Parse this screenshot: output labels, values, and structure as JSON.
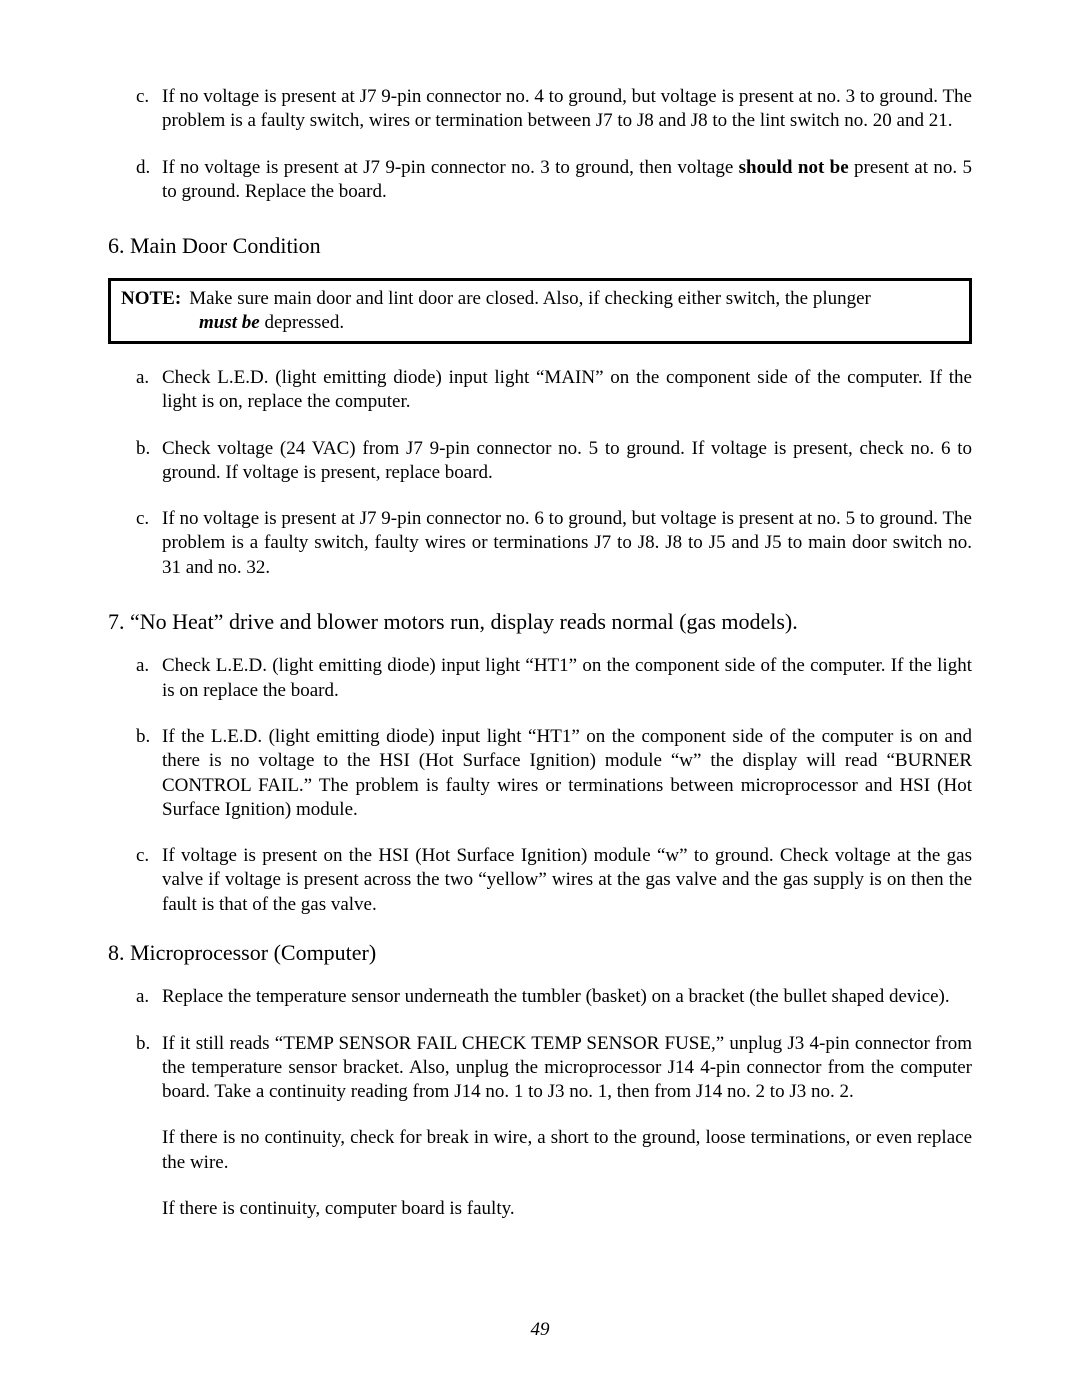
{
  "top_items": {
    "c": {
      "letter": "c.",
      "text": "If no voltage is present at J7 9-pin connector no. 4 to ground, but voltage is present at no. 3 to ground.  The problem is a faulty switch, wires or termination between J7 to J8 and J8 to the lint switch no. 20 and 21."
    },
    "d": {
      "letter": "d.",
      "pre": "If no voltage is present at J7 9-pin connector no. 3 to ground, then voltage ",
      "bold": "should not be",
      "post": " present at no. 5 to ground.  Replace the board."
    }
  },
  "section6": {
    "heading": "6.  Main Door Condition",
    "note": {
      "label": "NOTE:",
      "line1": "Make sure main door and lint door are closed.  Also, if checking either switch, the plunger",
      "line2_emph": "must be",
      "line2_rest": " depressed."
    },
    "items": {
      "a": {
        "letter": "a.",
        "text": "Check L.E.D. (light emitting diode) input light “MAIN” on the component side of the computer.  If the light is on, replace the computer."
      },
      "b": {
        "letter": "b.",
        "text": "Check voltage (24 VAC) from J7 9-pin connector no. 5 to ground.  If voltage is present, check no. 6 to ground.  If voltage is present, replace board."
      },
      "c": {
        "letter": "c.",
        "text": "If no voltage is present at J7 9-pin connector no. 6 to ground, but voltage is present at no. 5 to ground.  The problem is a faulty switch, faulty wires or terminations J7 to J8.  J8 to J5 and J5 to main door switch no. 31 and no. 32."
      }
    }
  },
  "section7": {
    "heading": "7.  “No Heat” drive and blower motors run, display reads normal (gas models).",
    "items": {
      "a": {
        "letter": "a.",
        "text": "Check L.E.D. (light emitting diode) input light “HT1” on the component side of the computer.  If the light is on replace the board."
      },
      "b": {
        "letter": "b.",
        "text": "If the L.E.D. (light emitting diode) input light “HT1” on the component side of the computer is on and there is no voltage to the HSI (Hot Surface Ignition) module “w” the display will read “BURNER CONTROL FAIL.”  The problem is faulty wires or terminations between microprocessor and HSI (Hot Surface Ignition) module."
      },
      "c": {
        "letter": "c.",
        "text": "If voltage is present on the HSI (Hot Surface Ignition) module “w” to ground.  Check voltage at the gas valve if voltage is present across the two “yellow” wires at the gas valve and the gas supply is on then the fault is that of the gas valve."
      }
    }
  },
  "section8": {
    "heading": "8.  Microprocessor  (Computer)",
    "items": {
      "a": {
        "letter": "a.",
        "text": "Replace the temperature sensor underneath the tumbler (basket) on a bracket (the bullet shaped device)."
      },
      "b": {
        "letter": "b.",
        "text": "If it still reads “TEMP SENSOR FAIL CHECK TEMP SENSOR FUSE,” unplug J3 4-pin connector from the temperature sensor bracket.  Also, unplug the microprocessor J14 4-pin connector from the computer board.  Take a continuity reading from J14 no. 1 to J3 no. 1, then from J14 no. 2 to J3 no. 2."
      }
    },
    "para1": "If there is no continuity, check for break in wire, a short to the ground, loose terminations, or even replace the wire.",
    "para2": "If there is continuity, computer board is faulty."
  },
  "page_number": "49"
}
